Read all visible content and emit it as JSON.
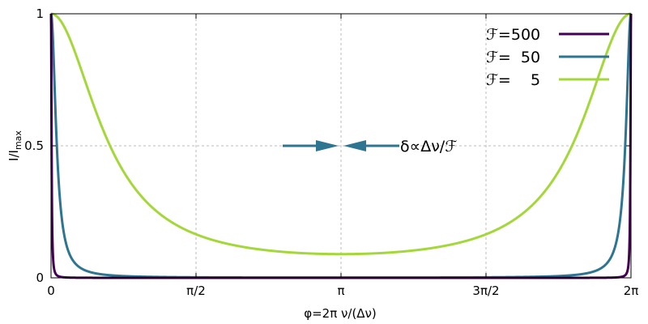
{
  "chart_data": {
    "type": "line",
    "function": "I/I_max = 1 / (1 + (2F/π)^2 · sin^2(φ/2))",
    "xlim": [
      0,
      6.283185307
    ],
    "ylim": [
      0,
      1
    ],
    "grid": true,
    "legend_position": "top-right",
    "xlabel": "φ=2π ν/(Δν)",
    "ylabel": "I/I",
    "ylabel_sub": "max",
    "x_tick_values": [
      0,
      1.5707963,
      3.1415927,
      4.712389,
      6.2831853
    ],
    "x_tick_labels": [
      "0",
      "π/2",
      "π",
      "3π/2",
      "2π"
    ],
    "y_tick_values": [
      0,
      0.5,
      1
    ],
    "y_tick_labels": [
      "0",
      "0.5",
      "1"
    ],
    "series": [
      {
        "name": "ℱ=500",
        "finesse": 500,
        "color": "#440154"
      },
      {
        "name": "ℱ=  50",
        "finesse": 50,
        "color": "#2e7591"
      },
      {
        "name": "ℱ=    5",
        "finesse": 5,
        "color": "#a4d83a"
      }
    ],
    "annotation": {
      "text": "δ∝Δν/ℱ",
      "level": 0.5,
      "center_x": 3.1415927,
      "color": "#2e7591"
    }
  }
}
